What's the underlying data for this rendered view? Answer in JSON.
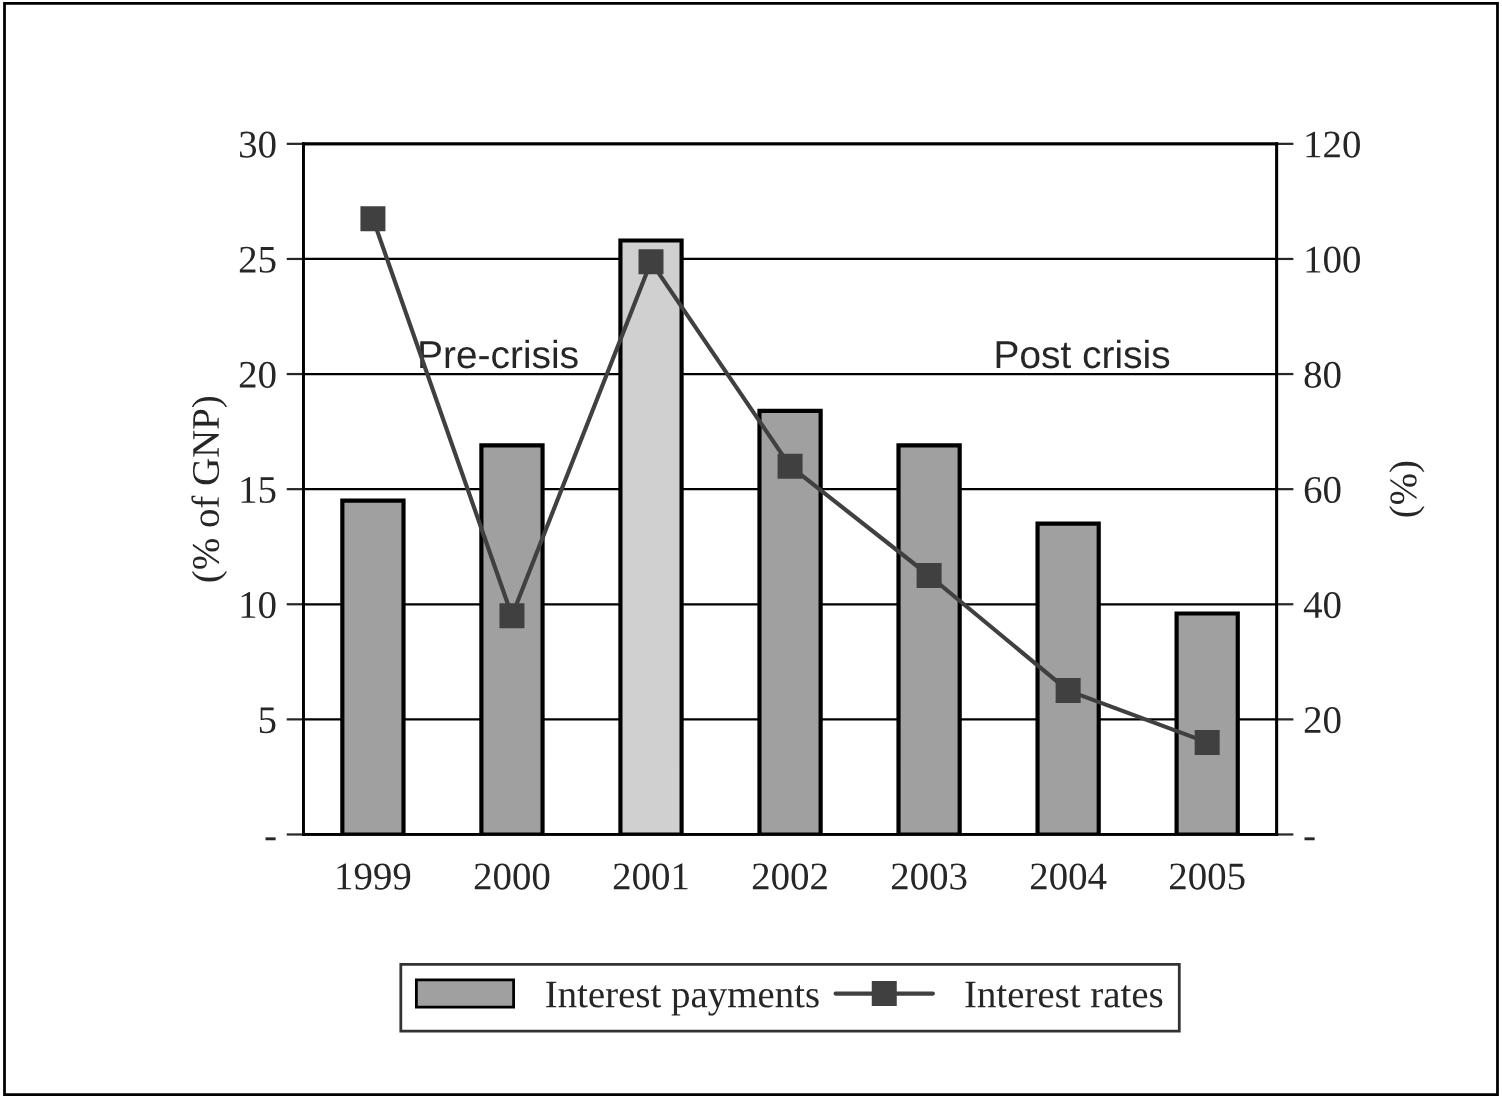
{
  "chart_data": {
    "type": "bar",
    "categories": [
      "1999",
      "2000",
      "2001",
      "2002",
      "2003",
      "2004",
      "2005"
    ],
    "ylabel": "(% of GNP)",
    "y2label": "(%)",
    "series": [
      {
        "name": "Interest payments",
        "color": "#a0a0a0",
        "colors": [
          "#a0a0a0",
          "#a0a0a0",
          "#d0d0d0",
          "#a0a0a0",
          "#a0a0a0",
          "#a0a0a0",
          "#a0a0a0"
        ],
        "values": [
          14.5,
          16.9,
          25.8,
          18.4,
          16.9,
          13.5,
          9.6
        ]
      },
      {
        "name": "Interest rates",
        "type": "line",
        "axis": "y2",
        "color": "#404040",
        "marker": "square",
        "values": [
          107,
          38,
          99.5,
          64,
          45,
          25,
          16
        ]
      }
    ],
    "ylim": [
      0,
      30
    ],
    "yticks": [
      {
        "value": 0,
        "label": "-"
      },
      5,
      10,
      15,
      20,
      25,
      30
    ],
    "y2lim": [
      0,
      120
    ],
    "y2ticks": [
      {
        "value": 0,
        "label": "-"
      },
      20,
      40,
      60,
      80,
      100,
      120
    ],
    "annotations": [
      "Pre-crisis",
      "Post crisis"
    ],
    "grid": "y",
    "legend": "bottom"
  }
}
